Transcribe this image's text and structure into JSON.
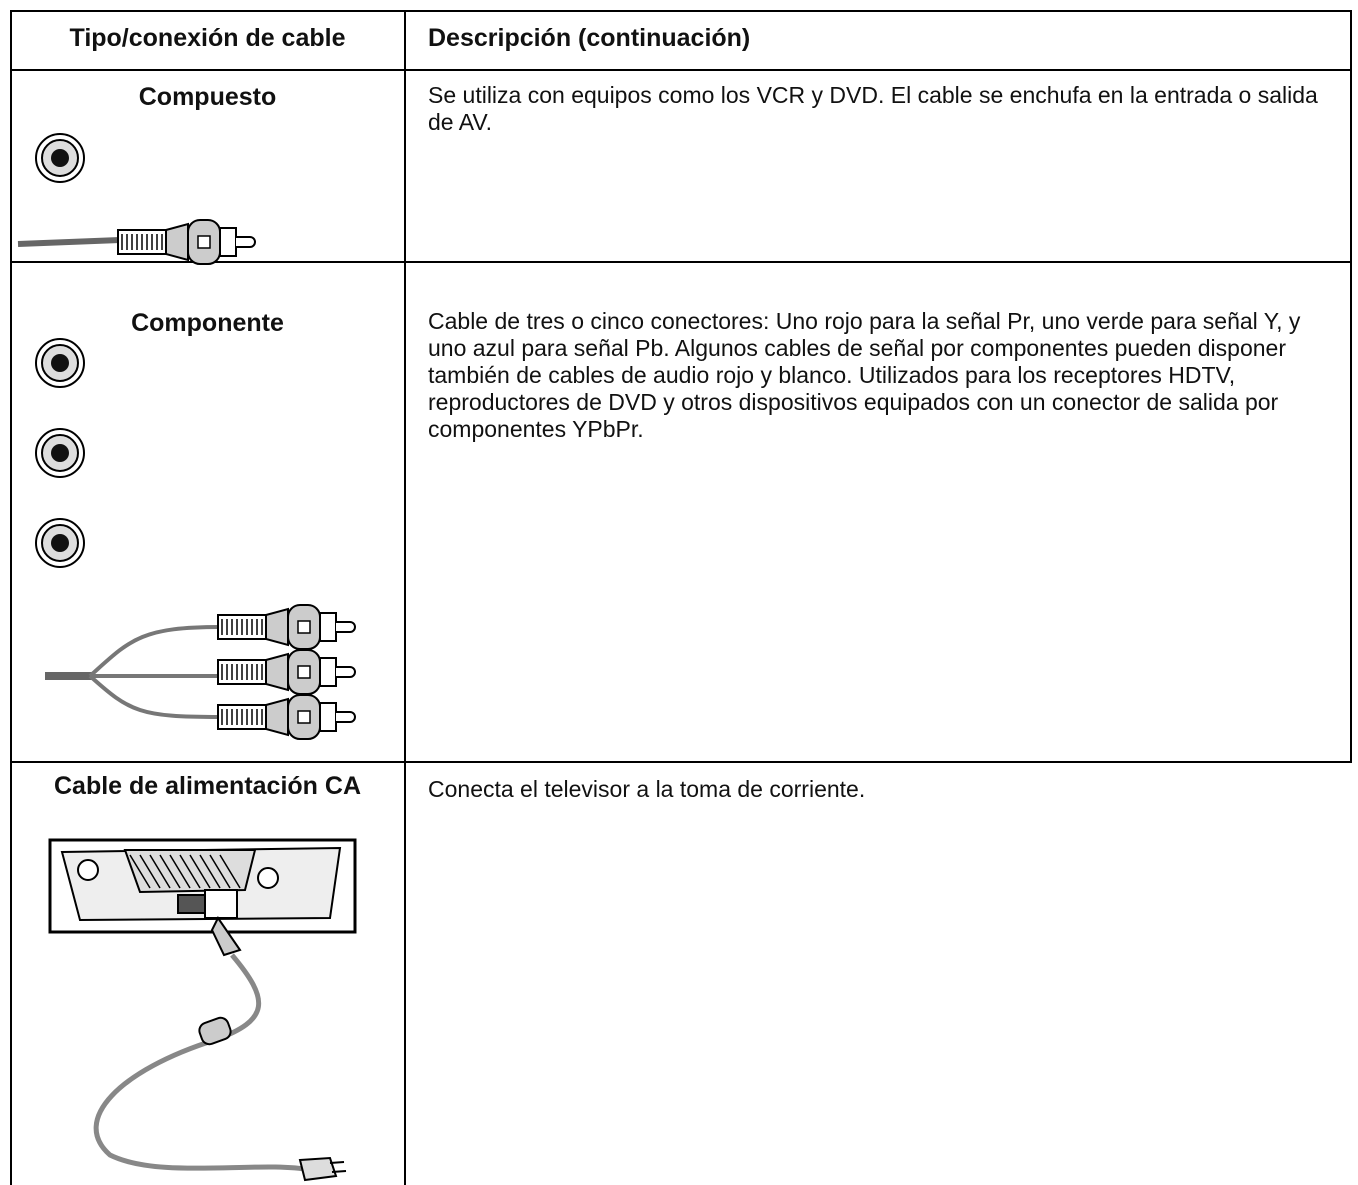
{
  "table": {
    "header": [
      "Tipo/conexión de cable",
      "Descripción (continuación)"
    ],
    "rows": [
      {
        "type": "Compuesto",
        "description": "Se utiliza con equipos como los VCR y DVD. El cable se enchufa en la entrada o salida de AV."
      },
      {
        "type": "Componente",
        "description": "Cable de tres o cinco conectores: Uno rojo para la señal Pr, uno verde para señal Y, y uno azul para señal Pb. Algunos cables de señal por componentes pueden disponer también de cables de audio rojo y blanco. Utilizados para los receptores HDTV, reproductores de DVD y otros dispositivos equipados con un conector de salida por componentes YPbPr."
      },
      {
        "type": "Cable de alimentación CA",
        "description": "Conecta el televisor a la toma de corriente."
      }
    ]
  }
}
